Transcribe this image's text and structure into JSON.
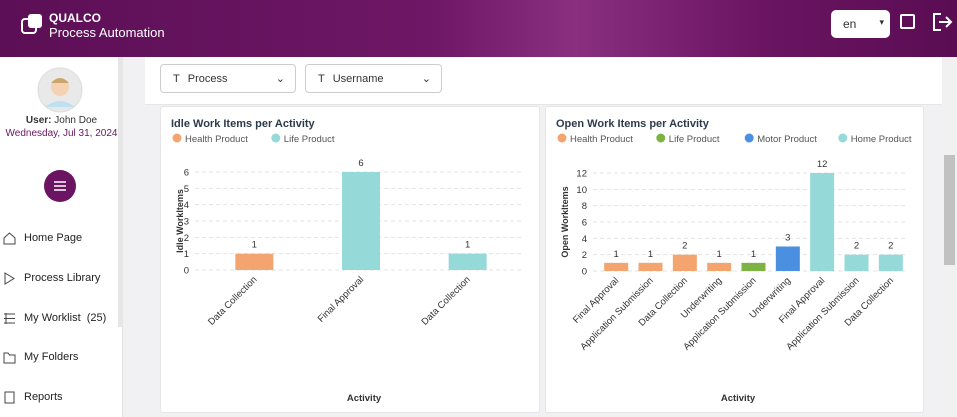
{
  "header": {
    "brand": "QUALCO",
    "product": "Process Automation",
    "language": "en"
  },
  "sidebar": {
    "user_label": "User:",
    "user_name": "John Doe",
    "date": "Wednesday, Jul 31, 2024",
    "menu": [
      {
        "label": "Home Page"
      },
      {
        "label": "Process Library"
      },
      {
        "label": "My Worklist",
        "count": "(25)"
      },
      {
        "label": "My Folders"
      },
      {
        "label": "Reports"
      }
    ]
  },
  "filters": [
    "Process",
    "Username"
  ],
  "chart_data": [
    {
      "type": "bar",
      "title": "Idle Work Items per Activity",
      "x_label": "Activity",
      "y_label": "Idle WorkItems",
      "categories": [
        "Data Collection",
        "Final Approval",
        "Data Collection"
      ],
      "series": [
        {
          "name": "Health Product",
          "color": "#f4a46f",
          "values": [
            1,
            null,
            null
          ]
        },
        {
          "name": "Life Product",
          "color": "#95d9d9",
          "values": [
            null,
            6,
            1
          ]
        }
      ],
      "ylim": [
        0,
        6
      ],
      "yticks": [
        0,
        1,
        2,
        3,
        4,
        5,
        6
      ],
      "grid": true
    },
    {
      "type": "bar",
      "title": "Open Work Items per Activity",
      "x_label": "Activity",
      "y_label": "Open WorkItems",
      "categories": [
        "Final Approval",
        "Application Submission",
        "Data Collection",
        "Underwriting",
        "Application Submission",
        "Underwriting",
        "Final Approval",
        "Application Submission",
        "Data Collection"
      ],
      "series": [
        {
          "name": "Health Product",
          "color": "#f4a46f",
          "values": [
            1,
            1,
            2,
            1,
            null,
            null,
            null,
            null,
            null
          ]
        },
        {
          "name": "Life Product",
          "color": "#7cb342",
          "values": [
            null,
            null,
            null,
            null,
            1,
            null,
            null,
            null,
            null
          ]
        },
        {
          "name": "Motor Product",
          "color": "#4a8fe0",
          "values": [
            null,
            null,
            null,
            null,
            null,
            3,
            null,
            null,
            null
          ]
        },
        {
          "name": "Home Product",
          "color": "#95d9d9",
          "values": [
            null,
            null,
            null,
            null,
            null,
            null,
            12,
            2,
            2
          ]
        }
      ],
      "ylim": [
        0,
        12
      ],
      "yticks": [
        0,
        2,
        4,
        6,
        8,
        10,
        12
      ],
      "grid": true
    }
  ]
}
